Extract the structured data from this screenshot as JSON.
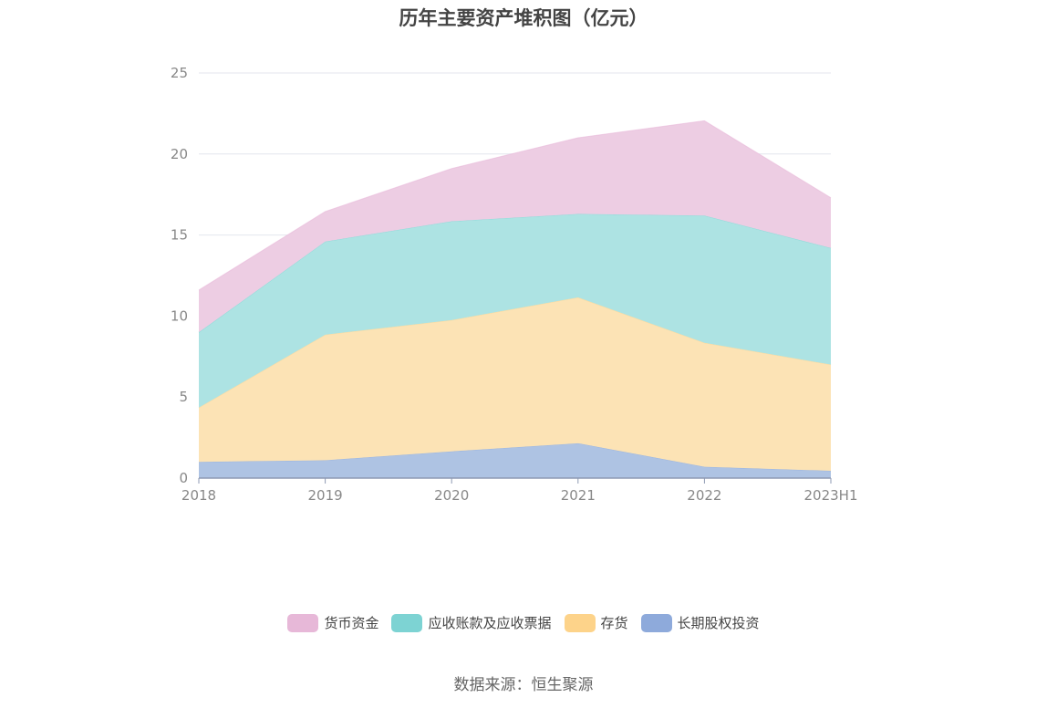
{
  "chart_data": {
    "type": "area",
    "stacked": true,
    "title": "历年主要资产堆积图（亿元）",
    "categories": [
      "2018",
      "2019",
      "2020",
      "2021",
      "2022",
      "2023H1"
    ],
    "y_ticks": [
      "0",
      "5",
      "10",
      "15",
      "20",
      "25"
    ],
    "ylim": [
      0,
      25
    ],
    "grid": true,
    "legend_position": "bottom",
    "series": [
      {
        "name": "长期股权投资",
        "color": "#8eaadb",
        "fill": "#aec3e3",
        "values": [
          1.0,
          1.1,
          1.65,
          2.15,
          0.7,
          0.45
        ]
      },
      {
        "name": "存货",
        "color": "#fdd38a",
        "fill": "#fce3b5",
        "values": [
          3.35,
          7.75,
          8.1,
          9.0,
          7.65,
          6.55
        ]
      },
      {
        "name": "应收账款及应收票据",
        "color": "#7dd3d3",
        "fill": "#ade3e3",
        "values": [
          4.65,
          5.75,
          6.1,
          5.15,
          7.85,
          7.2
        ]
      },
      {
        "name": "货币资金",
        "color": "#e7b8d8",
        "fill": "#edcde3",
        "values": [
          2.6,
          1.85,
          3.25,
          4.7,
          5.85,
          3.1
        ]
      }
    ]
  },
  "legend_order": [
    "货币资金",
    "应收账款及应收票据",
    "存货",
    "长期股权投资"
  ],
  "source": "数据来源：恒生聚源"
}
